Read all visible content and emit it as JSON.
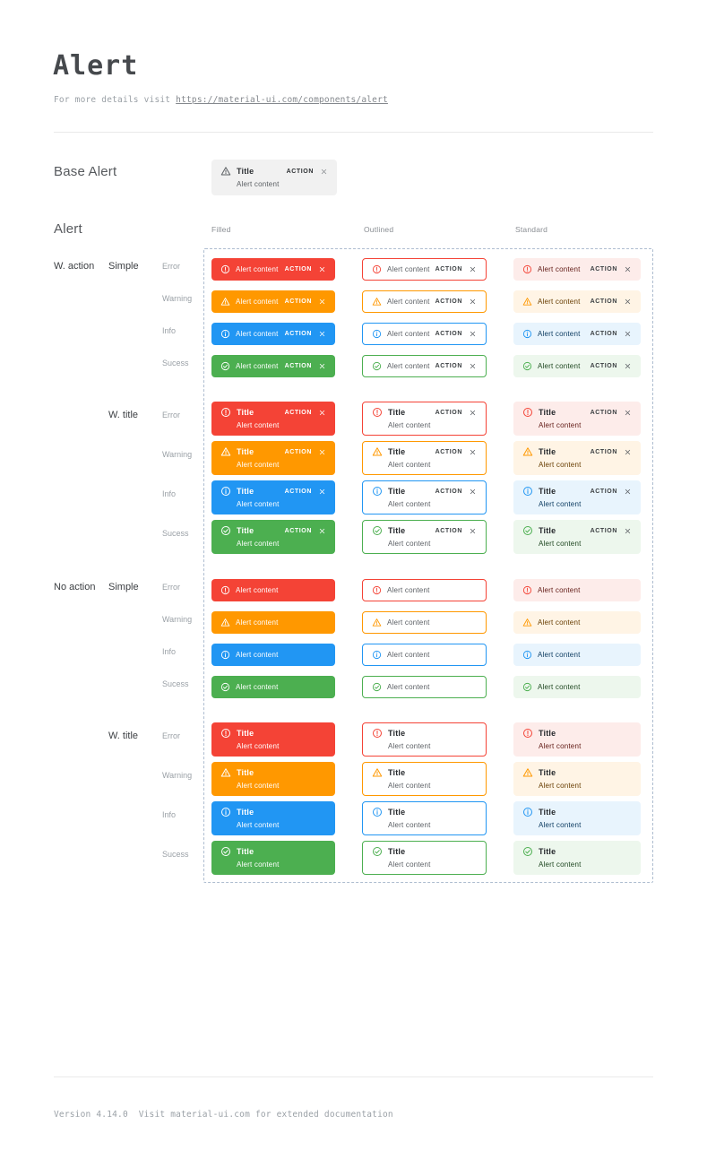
{
  "page": {
    "title": "Alert",
    "subtitle_prefix": "For more details visit ",
    "subtitle_link": "https://material-ui.com/components/alert",
    "footer": "Version 4.14.0  Visit material-ui.com for extended documentation"
  },
  "base_alert_section": {
    "label": "Base Alert",
    "alert": {
      "icon": "warning-icon",
      "title": "Title",
      "content": "Alert content",
      "action_label": "ACTION",
      "has_close": true
    }
  },
  "alert_section": {
    "label": "Alert",
    "columns": [
      "Filled",
      "Outlined",
      "Standard"
    ],
    "variants": [
      "filled",
      "outlined",
      "standard"
    ],
    "alert_text": {
      "title": "Title",
      "content": "Alert content",
      "action_label": "ACTION"
    },
    "groups": [
      {
        "category_label": "W. action",
        "style_label": "Simple",
        "with_title": false,
        "with_action": true,
        "rows": [
          {
            "label": "Error",
            "severity": "error"
          },
          {
            "label": "Warning",
            "severity": "warning"
          },
          {
            "label": "Info",
            "severity": "info"
          },
          {
            "label": "Sucess",
            "severity": "success"
          }
        ]
      },
      {
        "category_label": "",
        "style_label": "W. title",
        "with_title": true,
        "with_action": true,
        "rows": [
          {
            "label": "Error",
            "severity": "error"
          },
          {
            "label": "Warning",
            "severity": "warning"
          },
          {
            "label": "Info",
            "severity": "info"
          },
          {
            "label": "Sucess",
            "severity": "success"
          }
        ]
      },
      {
        "category_label": "No action",
        "style_label": "Simple",
        "with_title": false,
        "with_action": false,
        "rows": [
          {
            "label": "Error",
            "severity": "error"
          },
          {
            "label": "Warning",
            "severity": "warning"
          },
          {
            "label": "Info",
            "severity": "info"
          },
          {
            "label": "Sucess",
            "severity": "success"
          }
        ]
      },
      {
        "category_label": "",
        "style_label": "W. title",
        "with_title": true,
        "with_action": false,
        "rows": [
          {
            "label": "Error",
            "severity": "error"
          },
          {
            "label": "Warning",
            "severity": "warning"
          },
          {
            "label": "Info",
            "severity": "info"
          },
          {
            "label": "Sucess",
            "severity": "success"
          }
        ]
      }
    ]
  },
  "colors": {
    "error": {
      "main": "#f44336",
      "standard_bg": "#fdecea",
      "standard_text": "#611a15"
    },
    "warning": {
      "main": "#ff9800",
      "standard_bg": "#fff4e5",
      "standard_text": "#663c00"
    },
    "info": {
      "main": "#2196f3",
      "standard_bg": "#e8f4fd",
      "standard_text": "#0d3c61"
    },
    "success": {
      "main": "#4caf50",
      "standard_bg": "#edf7ed",
      "standard_text": "#1e4620"
    },
    "base_bg": "#f1f1f1",
    "dashed_border": "#aebdd0",
    "filled_text": "#ffffff",
    "neutral_title": "#26292d",
    "neutral_text": "#5a5e63",
    "neutral_action": "#3c4043"
  }
}
